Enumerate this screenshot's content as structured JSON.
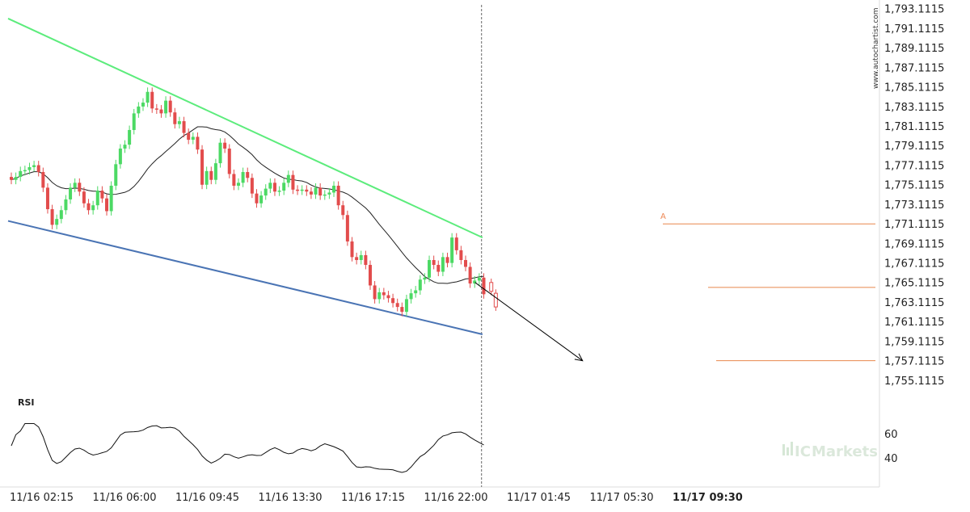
{
  "watermark": {
    "vertical": "www.autochartist.com",
    "brand": "ICMarkets",
    "brand_prefix": "IC",
    "brand_suffix": "Markets"
  },
  "colors": {
    "bull": "#4cd964",
    "bear": "#e24c4c",
    "resistance": "#5cec7c",
    "support": "#4a74b4",
    "levels": "#e8874c",
    "pattern_point": "#ee8855",
    "axis_text": "#222222",
    "gridline": "#cccccc"
  },
  "chart_data": [
    {
      "type": "candlestick",
      "y_tick_labels": [
        "1,793.1115",
        "1,791.1115",
        "1,789.1115",
        "1,787.1115",
        "1,785.1115",
        "1,783.1115",
        "1,781.1115",
        "1,779.1115",
        "1,777.1115",
        "1,775.1115",
        "1,773.1115",
        "1,771.1115",
        "1,769.1115",
        "1,767.1115",
        "1,765.1115",
        "1,763.1115",
        "1,761.1115",
        "1,759.1115",
        "1,757.1115",
        "1,755.1115"
      ],
      "ylim": [
        1754.1,
        1793.5
      ],
      "x_tick_labels": [
        "11/16 02:15",
        "11/16 06:00",
        "11/16 09:45",
        "11/16 13:30",
        "11/16 17:15",
        "11/16 22:00",
        "11/17 01:45",
        "11/17 05:30",
        "11/17 09:30"
      ],
      "highlighted_x_label": "11/17 09:30",
      "close_prices": [
        1775.6,
        1775.9,
        1776.5,
        1776.6,
        1776.9,
        1777.1,
        1776.4,
        1774.8,
        1772.6,
        1771.0,
        1771.6,
        1772.5,
        1773.6,
        1774.8,
        1775.3,
        1774.4,
        1773.2,
        1772.5,
        1773.0,
        1774.5,
        1773.7,
        1772.4,
        1775.0,
        1777.2,
        1778.8,
        1779.2,
        1780.7,
        1782.4,
        1783.1,
        1783.5,
        1784.6,
        1782.9,
        1782.8,
        1782.4,
        1783.7,
        1782.5,
        1781.3,
        1781.6,
        1780.4,
        1779.7,
        1780.0,
        1778.7,
        1775.1,
        1776.5,
        1775.6,
        1777.3,
        1779.4,
        1778.8,
        1776.2,
        1775.0,
        1775.3,
        1776.4,
        1775.8,
        1774.2,
        1773.2,
        1774.0,
        1774.7,
        1775.3,
        1774.4,
        1774.5,
        1775.3,
        1776.1,
        1774.6,
        1774.5,
        1774.6,
        1774.4,
        1774.1,
        1774.8,
        1774.0,
        1774.1,
        1774.3,
        1775.0,
        1773.0,
        1772.0,
        1769.3,
        1767.7,
        1767.4,
        1767.9,
        1766.9,
        1764.8,
        1763.4,
        1764.1,
        1763.8,
        1763.5,
        1763.0,
        1762.6,
        1762.1,
        1763.4,
        1764.0,
        1764.3,
        1765.4,
        1765.6,
        1767.4,
        1766.9,
        1766.2,
        1767.7,
        1767.1,
        1769.7,
        1768.4,
        1767.4,
        1766.7,
        1765.0,
        1765.3,
        1765.6,
        1763.9
      ],
      "series": [
        {
          "name": "RSI",
          "y_tick_labels": [
            "60",
            "40"
          ],
          "ylim": [
            20,
            80
          ]
        }
      ],
      "trendlines": [
        {
          "role": "resistance",
          "from": {
            "x_index": 0,
            "y": 1792.1
          },
          "to": {
            "x_index": 103,
            "y": 1769.7
          }
        },
        {
          "role": "support",
          "from": {
            "x_index": 0,
            "y": 1771.4
          },
          "to": {
            "x_index": 103,
            "y": 1759.8
          }
        }
      ],
      "levels": [
        1771.1,
        1764.6,
        1757.1
      ],
      "pattern_point_label": "A",
      "forecast": {
        "from": {
          "x_index": 106,
          "y": 1765.1
        },
        "to": {
          "x_index": 127,
          "y": 1757.1
        }
      },
      "current_time_index": 106
    }
  ]
}
